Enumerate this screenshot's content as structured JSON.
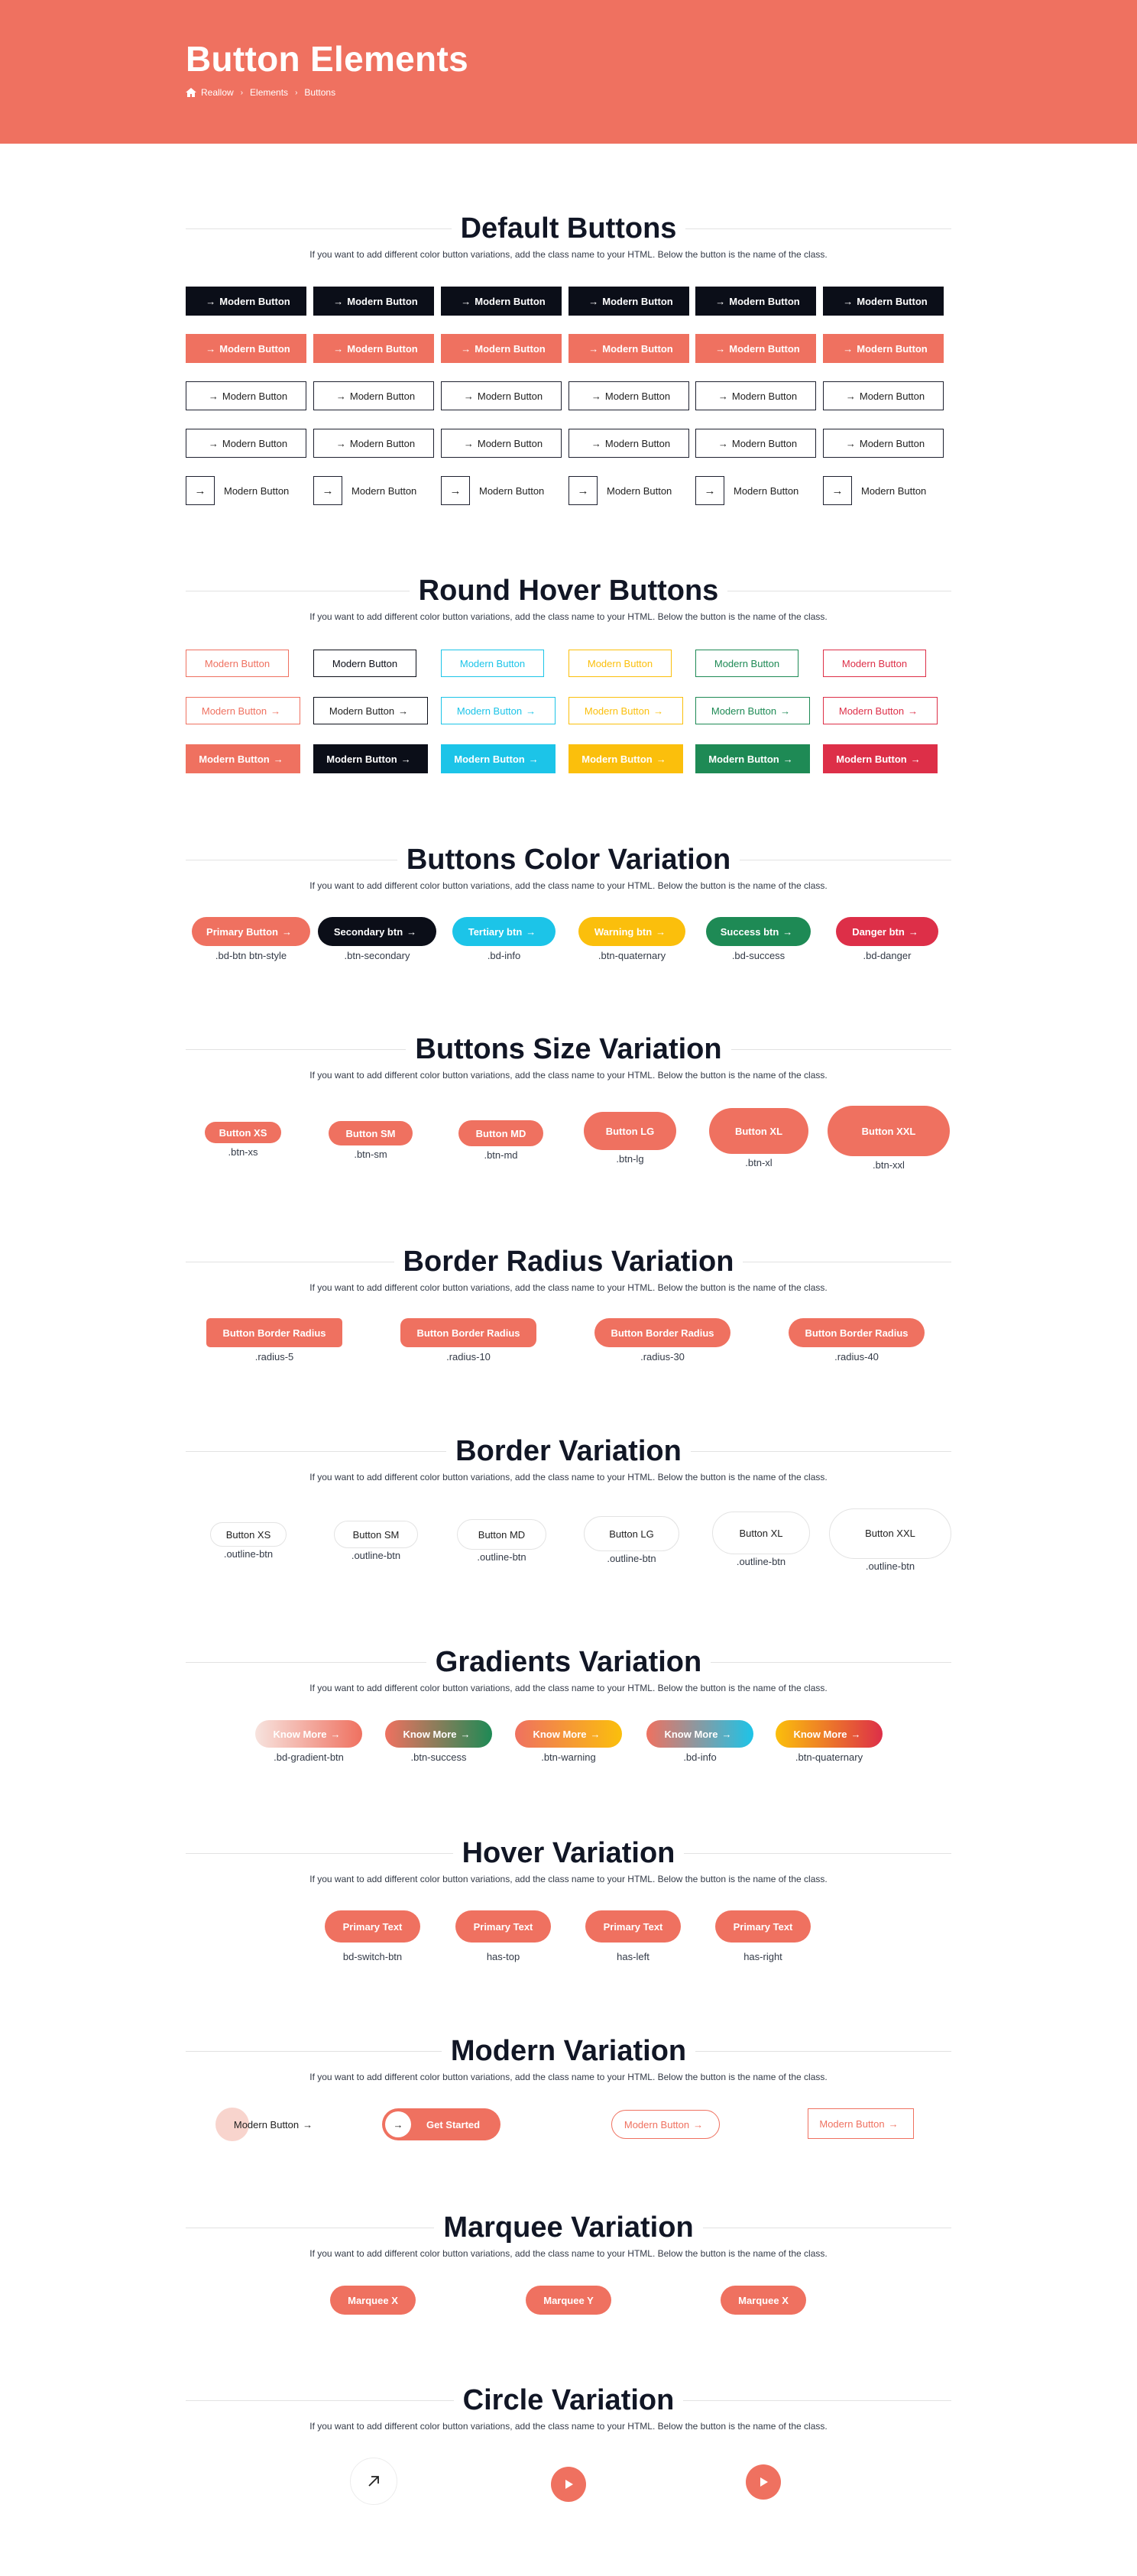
{
  "hero": {
    "title": "Button Elements",
    "breadcrumb": [
      "Reallow",
      "Elements",
      "Buttons"
    ]
  },
  "colors": {
    "primary": "#ef7160",
    "dark": "#0b0e18",
    "info": "#1cc4e8",
    "warning": "#fbbf0c",
    "success": "#1e8a55",
    "danger": "#dd2f48"
  },
  "desc": "If you want to add different color button variations, add the class name to your HTML. Below the button is the name of the class.",
  "default_buttons": {
    "title": "Default Buttons",
    "label": "Modern Button",
    "rows": 5,
    "cols": 6
  },
  "round_hover": {
    "title": "Round Hover Buttons",
    "label": "Modern Button",
    "cols": [
      "primary",
      "dark",
      "info",
      "warning",
      "success",
      "danger"
    ]
  },
  "color_variation": {
    "title": "Buttons Color Variation",
    "buttons": [
      {
        "label": "Primary Button",
        "cls": ".bd-btn btn-style"
      },
      {
        "label": "Secondary btn",
        "cls": ".btn-secondary"
      },
      {
        "label": "Tertiary btn",
        "cls": ".bd-info"
      },
      {
        "label": "Warning btn",
        "cls": ".btn-quaternary"
      },
      {
        "label": "Success btn",
        "cls": ".bd-success"
      },
      {
        "label": "Danger btn",
        "cls": ".bd-danger"
      }
    ]
  },
  "size_variation": {
    "title": "Buttons Size Variation",
    "buttons": [
      {
        "label": "Button XS",
        "cls": ".btn-xs"
      },
      {
        "label": "Button SM",
        "cls": ".btn-sm"
      },
      {
        "label": "Button MD",
        "cls": ".btn-md"
      },
      {
        "label": "Button LG",
        "cls": ".btn-lg"
      },
      {
        "label": "Button XL",
        "cls": ".btn-xl"
      },
      {
        "label": "Button XXL",
        "cls": ".btn-xxl"
      }
    ]
  },
  "radius_variation": {
    "title": "Border Radius Variation",
    "buttons": [
      {
        "label": "Button Border Radius",
        "cls": ".radius-5"
      },
      {
        "label": "Button Border Radius",
        "cls": ".radius-10"
      },
      {
        "label": "Button Border Radius",
        "cls": ".radius-30"
      },
      {
        "label": "Button Border Radius",
        "cls": ".radius-40"
      }
    ]
  },
  "border_variation": {
    "title": "Border Variation",
    "buttons": [
      {
        "label": "Button XS",
        "cls": ".outline-btn"
      },
      {
        "label": "Button SM",
        "cls": ".outline-btn"
      },
      {
        "label": "Button MD",
        "cls": ".outline-btn"
      },
      {
        "label": "Button LG",
        "cls": ".outline-btn"
      },
      {
        "label": "Button XL",
        "cls": ".outline-btn"
      },
      {
        "label": "Button XXL",
        "cls": ".outline-btn"
      }
    ]
  },
  "gradient_variation": {
    "title": "Gradients Variation",
    "buttons": [
      {
        "label": "Know More",
        "cls": ".bd-gradient-btn"
      },
      {
        "label": "Know More",
        "cls": ".btn-success"
      },
      {
        "label": "Know More",
        "cls": ".btn-warning"
      },
      {
        "label": "Know More",
        "cls": ".bd-info"
      },
      {
        "label": "Know More",
        "cls": ".btn-quaternary"
      }
    ]
  },
  "hover_variation": {
    "title": "Hover Variation",
    "buttons": [
      {
        "label": "Primary Text",
        "cls": "bd-switch-btn"
      },
      {
        "label": "Primary Text",
        "cls": "has-top"
      },
      {
        "label": "Primary Text",
        "cls": "has-left"
      },
      {
        "label": "Primary Text",
        "cls": "has-right"
      }
    ]
  },
  "modern_variation": {
    "title": "Modern Variation",
    "btn1": "Modern Button",
    "btn2": "Get Started",
    "btn3": "Modern Button",
    "btn4": "Modern Button"
  },
  "marquee_variation": {
    "title": "Marquee Variation",
    "buttons": [
      "Marquee X",
      "Marquee Y",
      "Marquee X"
    ]
  },
  "circle_variation": {
    "title": "Circle Variation",
    "icons": [
      "arrow-up-right-icon",
      "play-icon",
      "play-icon"
    ]
  }
}
